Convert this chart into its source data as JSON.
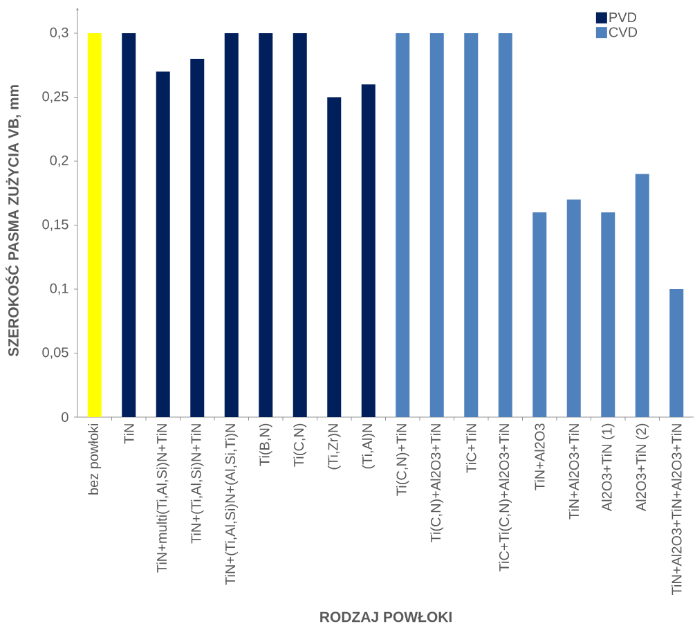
{
  "chart_data": {
    "type": "bar",
    "xlabel": "RODZAJ POWŁOKI",
    "ylabel": "SZEROKOŚĆ PASMA ZUŻYCIA VB, mm",
    "categories": [
      "bez powłoki",
      "TiN",
      "TiN+multi(Ti,Al,Si)N+TiN",
      "TiN+(Ti,Al,Si)N+TiN",
      "TiN+(Ti,Al,Si)N+(Al,Si,Ti)N",
      "Ti(B,N)",
      "Ti(C,N)",
      "(Ti,Zr)N",
      "(Ti,Al)N",
      "Ti(C,N)+TiN",
      "Ti(C,N)+Al2O3+TiN",
      "TiC+TiN",
      "TiC+Ti(C,N)+Al2O3+TiN",
      "TiN+Al2O3",
      "TiN+Al2O3+TiN",
      "Al2O3+TiN (1)",
      "Al2O3+TiN (2)",
      "TiN+Al2O3+TiN+Al2O3+TiN"
    ],
    "series": [
      {
        "color": "#ffff00",
        "values": [
          0.3,
          null,
          null,
          null,
          null,
          null,
          null,
          null,
          null,
          null,
          null,
          null,
          null,
          null,
          null,
          null,
          null,
          null
        ]
      },
      {
        "name": "PVD",
        "color": "#001f5b",
        "values": [
          null,
          0.3,
          0.27,
          0.28,
          0.3,
          0.3,
          0.3,
          0.25,
          0.26,
          null,
          null,
          null,
          null,
          null,
          null,
          null,
          null,
          null
        ]
      },
      {
        "name": "CVD",
        "color": "#4f81bd",
        "values": [
          null,
          null,
          null,
          null,
          null,
          null,
          null,
          null,
          null,
          0.3,
          0.3,
          0.3,
          0.3,
          0.16,
          0.17,
          0.16,
          0.19,
          0.1
        ]
      }
    ],
    "ylim": [
      0,
      0.32
    ],
    "yticks": [
      0,
      {
        "value": 0.05,
        "label": "0,05"
      },
      {
        "value": 0.1,
        "label": "0,1"
      },
      {
        "value": 0.15,
        "label": "0,15"
      },
      {
        "value": 0.2,
        "label": "0,2"
      },
      {
        "value": 0.25,
        "label": "0,25"
      },
      {
        "value": 0.3,
        "label": "0,3"
      }
    ],
    "legend": "top right"
  }
}
